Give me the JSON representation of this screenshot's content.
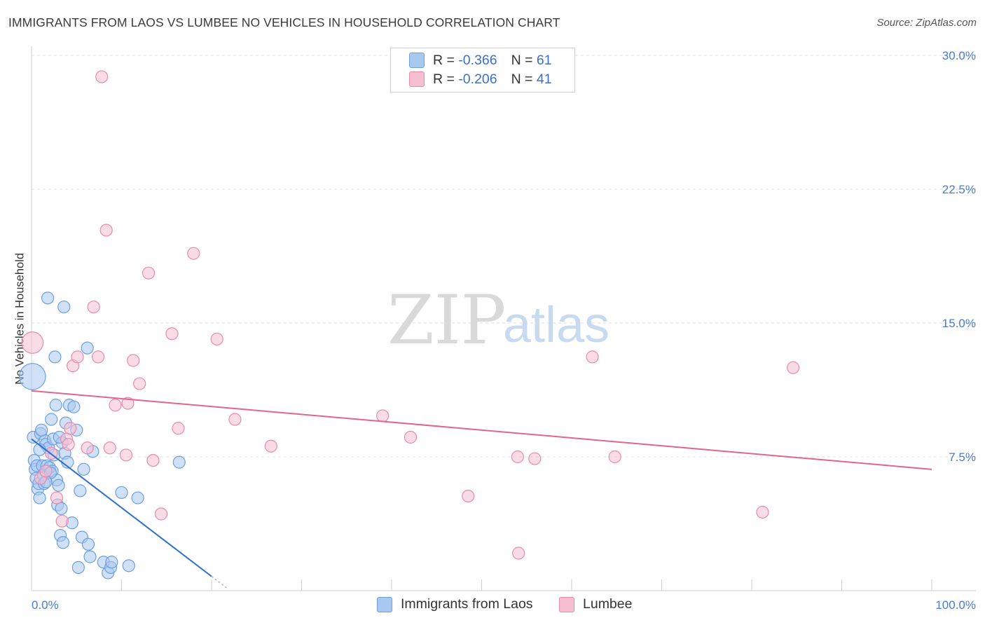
{
  "header": {
    "title": "IMMIGRANTS FROM LAOS VS LUMBEE NO VEHICLES IN HOUSEHOLD CORRELATION CHART",
    "source": "Source: ZipAtlas.com"
  },
  "watermark": {
    "zip": "ZIP",
    "atlas": "atlas"
  },
  "colors": {
    "blue_fill": "#a9c8f0",
    "blue_stroke": "#6c9fe0",
    "blue_line": "#2c6fcf",
    "pink_fill": "#f6bfd1",
    "pink_stroke": "#e98aab",
    "pink_line": "#e06591",
    "tick_text": "#4a7cc9"
  },
  "legend": {
    "rows": [
      {
        "r_label": "R =",
        "r_value": "-0.366",
        "n_label": "N =",
        "n_value": "61"
      },
      {
        "r_label": "R =",
        "r_value": "-0.206",
        "n_label": "N =",
        "n_value": "41"
      }
    ]
  },
  "chart_data": {
    "type": "scatter",
    "title": "IMMIGRANTS FROM LAOS VS LUMBEE NO VEHICLES IN HOUSEHOLD CORRELATION CHART",
    "xlabel": "",
    "ylabel": "No Vehicles in Household",
    "xlim": [
      0,
      100
    ],
    "ylim": [
      0,
      30
    ],
    "x_tick_labels": [
      "0.0%",
      "100.0%"
    ],
    "y_ticks": [
      7.5,
      15.0,
      22.5,
      30.0
    ],
    "y_tick_labels": [
      "7.5%",
      "15.0%",
      "22.5%",
      "30.0%"
    ],
    "grid": "horizontal dashed",
    "series": [
      {
        "name": "Immigrants from Laos",
        "r": -0.366,
        "n": 61,
        "points": [
          [
            0.1,
            12.0,
            2.2
          ],
          [
            0.2,
            8.6,
            1
          ],
          [
            0.3,
            7.3,
            1
          ],
          [
            0.4,
            6.8,
            1
          ],
          [
            0.5,
            6.3,
            1
          ],
          [
            0.6,
            7.0,
            1
          ],
          [
            0.7,
            5.7,
            1
          ],
          [
            0.8,
            6.0,
            1
          ],
          [
            0.9,
            5.2,
            1
          ],
          [
            1.0,
            8.8,
            1
          ],
          [
            1.2,
            7.0,
            1
          ],
          [
            1.3,
            6.5,
            1
          ],
          [
            1.4,
            6.0,
            1
          ],
          [
            1.5,
            8.4,
            1
          ],
          [
            1.6,
            8.2,
            1
          ],
          [
            1.7,
            7.0,
            1
          ],
          [
            1.8,
            16.4,
            1
          ],
          [
            1.9,
            8.0,
            1
          ],
          [
            2.0,
            6.9,
            1
          ],
          [
            2.2,
            9.6,
            1
          ],
          [
            2.3,
            6.7,
            1
          ],
          [
            2.4,
            8.5,
            1
          ],
          [
            2.5,
            7.6,
            1
          ],
          [
            2.6,
            13.1,
            1
          ],
          [
            2.7,
            10.4,
            1
          ],
          [
            2.8,
            6.2,
            1
          ],
          [
            2.9,
            4.8,
            1
          ],
          [
            3.0,
            5.9,
            1
          ],
          [
            3.2,
            3.1,
            1
          ],
          [
            3.3,
            4.6,
            1
          ],
          [
            3.4,
            8.3,
            1
          ],
          [
            3.5,
            2.7,
            1
          ],
          [
            3.6,
            15.9,
            1
          ],
          [
            3.7,
            7.7,
            1
          ],
          [
            3.8,
            9.4,
            1
          ],
          [
            4.0,
            7.2,
            1
          ],
          [
            4.2,
            10.4,
            1
          ],
          [
            4.5,
            3.8,
            1
          ],
          [
            4.7,
            10.3,
            1
          ],
          [
            5.0,
            9.0,
            1
          ],
          [
            5.2,
            1.3,
            1
          ],
          [
            5.4,
            5.6,
            1
          ],
          [
            5.6,
            3.0,
            1
          ],
          [
            5.8,
            6.8,
            1
          ],
          [
            6.2,
            13.6,
            1
          ],
          [
            6.3,
            2.6,
            1
          ],
          [
            6.5,
            1.9,
            1
          ],
          [
            6.8,
            7.8,
            1
          ],
          [
            8.0,
            1.6,
            1
          ],
          [
            8.5,
            1.0,
            1
          ],
          [
            8.8,
            1.3,
            1
          ],
          [
            8.9,
            1.6,
            1
          ],
          [
            10.0,
            5.5,
            1
          ],
          [
            10.8,
            1.4,
            1
          ],
          [
            11.8,
            5.2,
            1
          ],
          [
            16.4,
            7.2,
            1
          ],
          [
            1.1,
            9.0,
            1
          ],
          [
            2.1,
            6.6,
            1
          ],
          [
            0.9,
            7.9,
            1
          ],
          [
            1.6,
            6.1,
            1
          ],
          [
            3.1,
            8.6,
            1
          ]
        ]
      },
      {
        "name": "Lumbee",
        "r": -0.206,
        "n": 41,
        "points": [
          [
            0.1,
            13.9,
            1.8
          ],
          [
            1.0,
            6.3,
            1
          ],
          [
            1.6,
            6.7,
            1
          ],
          [
            2.2,
            7.7,
            1
          ],
          [
            2.8,
            5.2,
            1
          ],
          [
            3.4,
            3.9,
            1
          ],
          [
            3.9,
            8.5,
            1
          ],
          [
            4.1,
            8.2,
            1
          ],
          [
            4.3,
            9.1,
            1
          ],
          [
            4.6,
            12.6,
            1
          ],
          [
            5.1,
            13.1,
            1
          ],
          [
            6.2,
            8.0,
            1
          ],
          [
            6.9,
            15.9,
            1
          ],
          [
            7.4,
            13.1,
            1
          ],
          [
            7.8,
            28.8,
            1
          ],
          [
            8.3,
            20.2,
            1
          ],
          [
            8.7,
            8.0,
            1
          ],
          [
            9.3,
            10.4,
            1
          ],
          [
            10.5,
            7.6,
            1
          ],
          [
            10.7,
            10.5,
            1
          ],
          [
            11.3,
            12.9,
            1
          ],
          [
            12.0,
            11.6,
            1
          ],
          [
            13.0,
            17.8,
            1
          ],
          [
            13.5,
            7.3,
            1
          ],
          [
            14.4,
            4.3,
            1
          ],
          [
            15.6,
            14.4,
            1
          ],
          [
            16.3,
            9.1,
            1
          ],
          [
            18.0,
            18.9,
            1
          ],
          [
            20.6,
            14.1,
            1
          ],
          [
            22.6,
            9.6,
            1
          ],
          [
            26.6,
            8.1,
            1
          ],
          [
            39.0,
            9.8,
            1
          ],
          [
            42.1,
            8.6,
            1
          ],
          [
            48.5,
            5.3,
            1
          ],
          [
            54.0,
            7.5,
            1
          ],
          [
            54.1,
            2.1,
            1
          ],
          [
            55.9,
            7.4,
            1
          ],
          [
            62.3,
            13.1,
            1
          ],
          [
            64.8,
            7.5,
            1
          ],
          [
            81.2,
            4.4,
            1
          ],
          [
            84.6,
            12.5,
            1
          ]
        ]
      }
    ],
    "trend_lines": [
      {
        "series": "Immigrants from Laos",
        "x": [
          0,
          20
        ],
        "y": [
          8.5,
          0.8
        ],
        "dashed_extension_to_x": 21.8
      },
      {
        "series": "Lumbee",
        "x": [
          0,
          100
        ],
        "y": [
          11.2,
          6.8
        ]
      }
    ]
  },
  "bottom_legend": {
    "items": [
      {
        "label": "Immigrants from Laos"
      },
      {
        "label": "Lumbee"
      }
    ]
  }
}
